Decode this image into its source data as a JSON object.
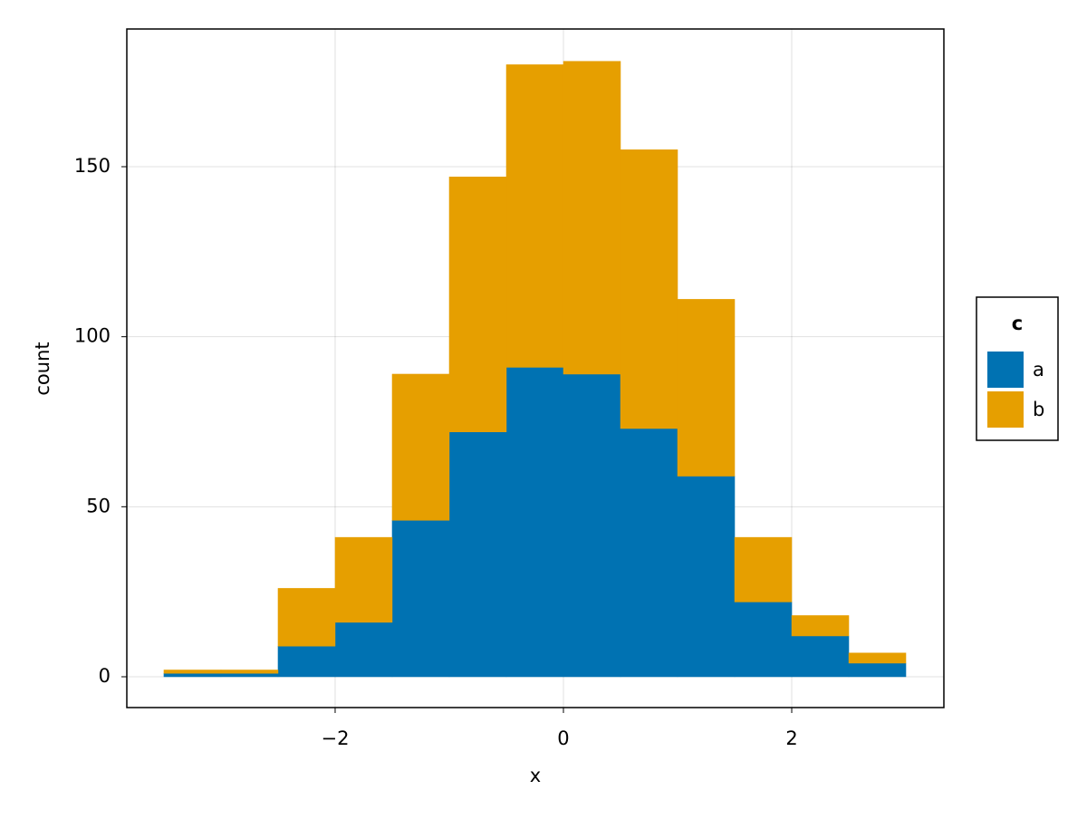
{
  "chart_data": {
    "type": "histogram",
    "x_label": "x",
    "y_label": "count",
    "bins": [
      -3.5,
      -3.0,
      -2.5,
      -2.0,
      -1.5,
      -1.0,
      -0.5,
      0.0,
      0.5,
      1.0,
      1.5,
      2.0,
      2.5,
      3.0
    ],
    "series": [
      {
        "name": "a",
        "color": "#0072b2",
        "values": [
          1,
          1,
          9,
          16,
          46,
          72,
          91,
          89,
          73,
          59,
          22,
          12,
          4
        ]
      },
      {
        "name": "b",
        "color": "#e69f00",
        "values": [
          1,
          1,
          17,
          25,
          43,
          75,
          89,
          92,
          82,
          52,
          19,
          6,
          3
        ]
      }
    ],
    "stacked": true,
    "legend_title": "c",
    "legend_position": "right",
    "xlim": [
      -3.825,
      3.333
    ],
    "ylim": [
      -9.06,
      190.5
    ],
    "xticks": [
      {
        "value": -2,
        "label": "−2"
      },
      0,
      2
    ],
    "yticks": [
      0,
      50,
      100,
      150
    ],
    "grid": true
  }
}
